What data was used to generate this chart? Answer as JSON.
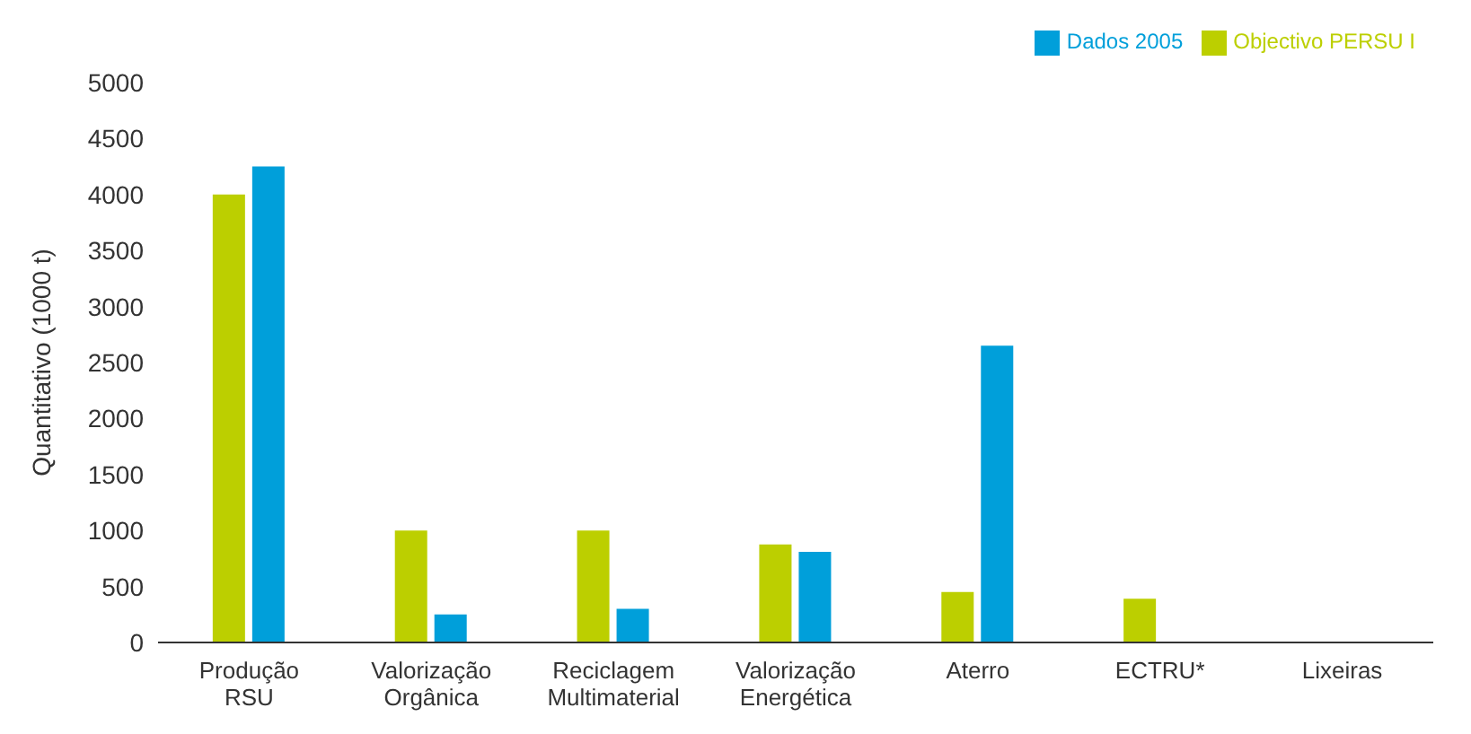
{
  "chart_data": {
    "type": "bar",
    "ylabel": "Quantitativo (1000 t)",
    "categories": [
      "Produção RSU",
      "Valorização Orgânica",
      "Reciclagem Multimaterial",
      "Valorização Energética",
      "Aterro",
      "ECTRU*",
      "Lixeiras"
    ],
    "series": [
      {
        "name": "Objectivo PERSU I",
        "color": "#bccf00",
        "values": [
          4000,
          1000,
          1000,
          875,
          450,
          390,
          0
        ]
      },
      {
        "name": "Dados 2005",
        "color": "#009fda",
        "values": [
          4250,
          250,
          300,
          810,
          2650,
          0,
          0
        ]
      }
    ],
    "ylim": [
      0,
      5000
    ],
    "yticks": [
      0,
      500,
      1000,
      1500,
      2000,
      2500,
      3000,
      3500,
      4000,
      4500,
      5000
    ],
    "grid": false,
    "legend": "top right"
  }
}
